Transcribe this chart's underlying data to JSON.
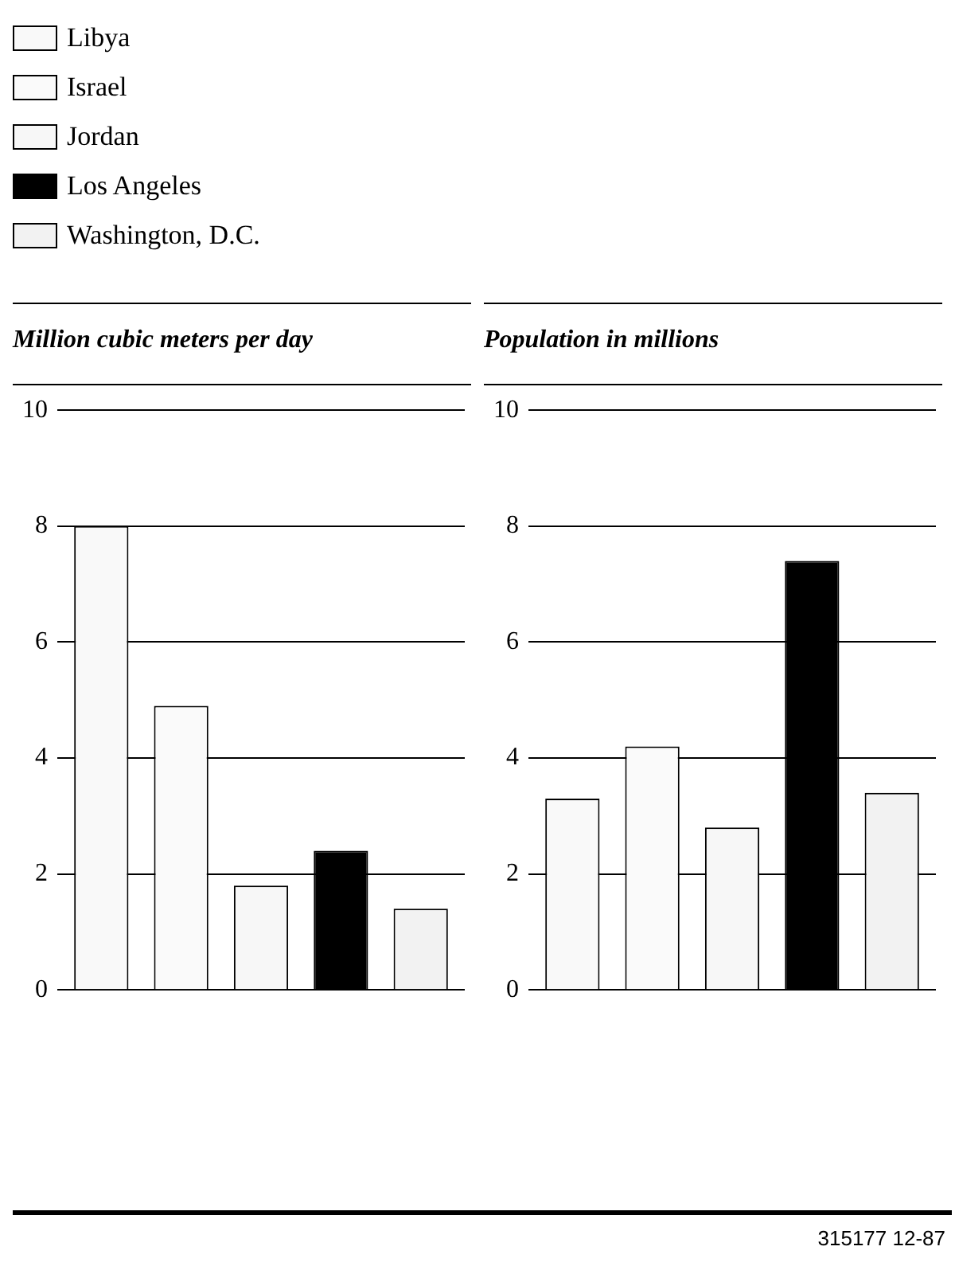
{
  "chart_data": [
    {
      "type": "bar",
      "title": "Million cubic meters per day",
      "categories": [
        null
      ],
      "legend": "top left",
      "grid": "y",
      "ylim": [
        0,
        10
      ],
      "yticks": [
        0,
        2,
        4,
        6,
        8,
        10
      ],
      "series": [
        {
          "name": "Libya",
          "color": "#f9f9f9",
          "values": [
            8.0
          ]
        },
        {
          "name": "Israel",
          "color": "#fafafa",
          "values": [
            4.9
          ]
        },
        {
          "name": "Jordan",
          "color": "#f7f7f7",
          "values": [
            1.8
          ]
        },
        {
          "name": "Los Angeles",
          "color": "#000000",
          "values": [
            2.4
          ]
        },
        {
          "name": "Washington, D.C.",
          "color": "#f2f2f2",
          "values": [
            1.4
          ]
        }
      ]
    },
    {
      "type": "bar",
      "title": "Population in millions",
      "categories": [
        null
      ],
      "grid": "y",
      "ylim": [
        0,
        10
      ],
      "yticks": [
        0,
        2,
        4,
        6,
        8,
        10
      ],
      "annotations": [
        "315177 12-87"
      ],
      "series": [
        {
          "color": "#f9f9f9",
          "values": [
            3.3
          ]
        },
        {
          "color": "#fafafa",
          "values": [
            4.2
          ]
        },
        {
          "color": "#f7f7f7",
          "values": [
            2.8
          ]
        },
        {
          "color": "#000000",
          "values": [
            7.4
          ]
        },
        {
          "color": "#f2f2f2",
          "values": [
            3.4
          ]
        }
      ]
    }
  ]
}
